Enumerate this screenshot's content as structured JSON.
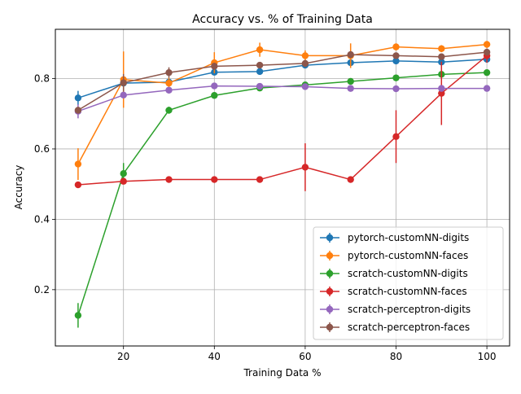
{
  "chart_data": {
    "type": "line",
    "title": "Accuracy vs. % of Training Data",
    "xlabel": "Training Data %",
    "ylabel": "Accuracy",
    "xlim": [
      5,
      105
    ],
    "ylim": [
      0.04,
      0.94
    ],
    "x": [
      10,
      20,
      30,
      40,
      50,
      60,
      70,
      80,
      90,
      100
    ],
    "xticks": [
      20,
      40,
      60,
      80,
      100
    ],
    "yticks": [
      0.2,
      0.4,
      0.6,
      0.8
    ],
    "ytick_labels": [
      "0.2",
      "0.4",
      "0.6",
      "0.8"
    ],
    "grid": true,
    "legend_position": "lower-right",
    "series": [
      {
        "name": "pytorch-customNN-digits",
        "color": "#1f77b4",
        "values": [
          0.745,
          0.787,
          0.79,
          0.818,
          0.82,
          0.838,
          0.845,
          0.85,
          0.847,
          0.855
        ],
        "errors": [
          0.02,
          0.01,
          0.01,
          0.008,
          0.008,
          0.008,
          0.01,
          0.008,
          0.008,
          0.008
        ]
      },
      {
        "name": "pytorch-customNN-faces",
        "color": "#ff7f0e",
        "values": [
          0.557,
          0.797,
          0.787,
          0.845,
          0.882,
          0.865,
          0.865,
          0.89,
          0.885,
          0.897
        ],
        "errors": [
          0.045,
          0.08,
          0.015,
          0.03,
          0.02,
          0.015,
          0.035,
          0.01,
          0.01,
          0.01
        ]
      },
      {
        "name": "scratch-customNN-digits",
        "color": "#2ca02c",
        "values": [
          0.127,
          0.53,
          0.71,
          0.752,
          0.773,
          0.782,
          0.792,
          0.802,
          0.812,
          0.817
        ],
        "errors": [
          0.035,
          0.03,
          0.01,
          0.008,
          0.005,
          0.005,
          0.005,
          0.005,
          0.005,
          0.005
        ]
      },
      {
        "name": "scratch-customNN-faces",
        "color": "#d62728",
        "values": [
          0.498,
          0.508,
          0.513,
          0.513,
          0.513,
          0.548,
          0.513,
          0.635,
          0.758,
          0.865
        ],
        "errors": [
          0.005,
          0.005,
          0.005,
          0.005,
          0.005,
          0.068,
          0.005,
          0.075,
          0.09,
          0.02
        ]
      },
      {
        "name": "scratch-perceptron-digits",
        "color": "#9467bd",
        "values": [
          0.707,
          0.753,
          0.767,
          0.779,
          0.778,
          0.777,
          0.772,
          0.771,
          0.772,
          0.772
        ],
        "errors": [
          0.02,
          0.008,
          0.008,
          0.005,
          0.005,
          0.005,
          0.005,
          0.005,
          0.005,
          0.005
        ]
      },
      {
        "name": "scratch-perceptron-faces",
        "color": "#8c564b",
        "values": [
          0.71,
          0.788,
          0.817,
          0.835,
          0.838,
          0.843,
          0.868,
          0.865,
          0.862,
          0.875
        ],
        "errors": [
          0.01,
          0.025,
          0.015,
          0.01,
          0.008,
          0.01,
          0.01,
          0.008,
          0.008,
          0.01
        ]
      }
    ]
  }
}
